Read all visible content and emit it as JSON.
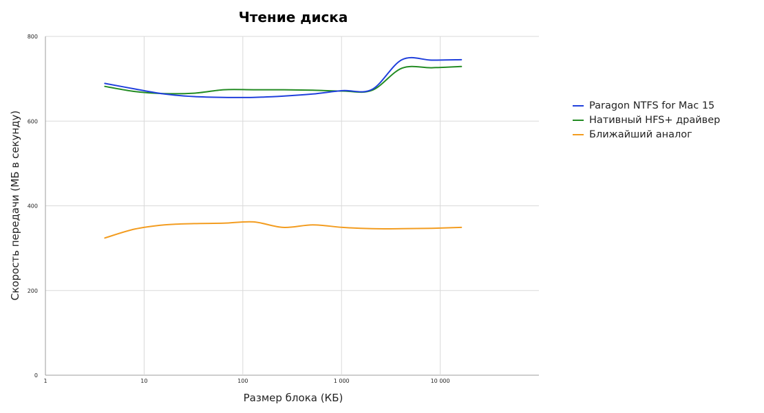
{
  "chart_data": {
    "type": "line",
    "title": "Чтение диска",
    "xlabel": "Размер блока (КБ)",
    "ylabel": "Скорость передачи (МБ в секунду)",
    "x_scale": "log",
    "xlim": [
      1,
      100000
    ],
    "ylim": [
      0,
      800
    ],
    "x_ticks": [
      1,
      10,
      100,
      1000,
      10000
    ],
    "x_tick_labels": [
      "1",
      "10",
      "100",
      "1 000",
      "10 000"
    ],
    "y_ticks": [
      0,
      200,
      400,
      600,
      800
    ],
    "y_tick_labels": [
      "0",
      "200",
      "400",
      "600",
      "800"
    ],
    "grid": true,
    "legend_position": "right",
    "x": [
      4,
      8,
      16,
      32,
      64,
      128,
      256,
      512,
      1024,
      2048,
      4096,
      8192,
      16384
    ],
    "series": [
      {
        "name": "Paragon NTFS for Mac 15",
        "color": "#1f3fdc",
        "values": [
          689,
          676,
          664,
          658,
          656,
          656,
          659,
          664,
          672,
          675,
          745,
          744,
          745
        ]
      },
      {
        "name": "Нативный HFS+ драйвер",
        "color": "#228b22",
        "values": [
          682,
          670,
          665,
          666,
          674,
          674,
          674,
          673,
          671,
          673,
          725,
          726,
          729
        ]
      },
      {
        "name": "Ближайший аналог",
        "color": "#f39c1f",
        "values": [
          324,
          345,
          355,
          358,
          359,
          362,
          349,
          355,
          349,
          346,
          346,
          347,
          349
        ]
      }
    ]
  }
}
